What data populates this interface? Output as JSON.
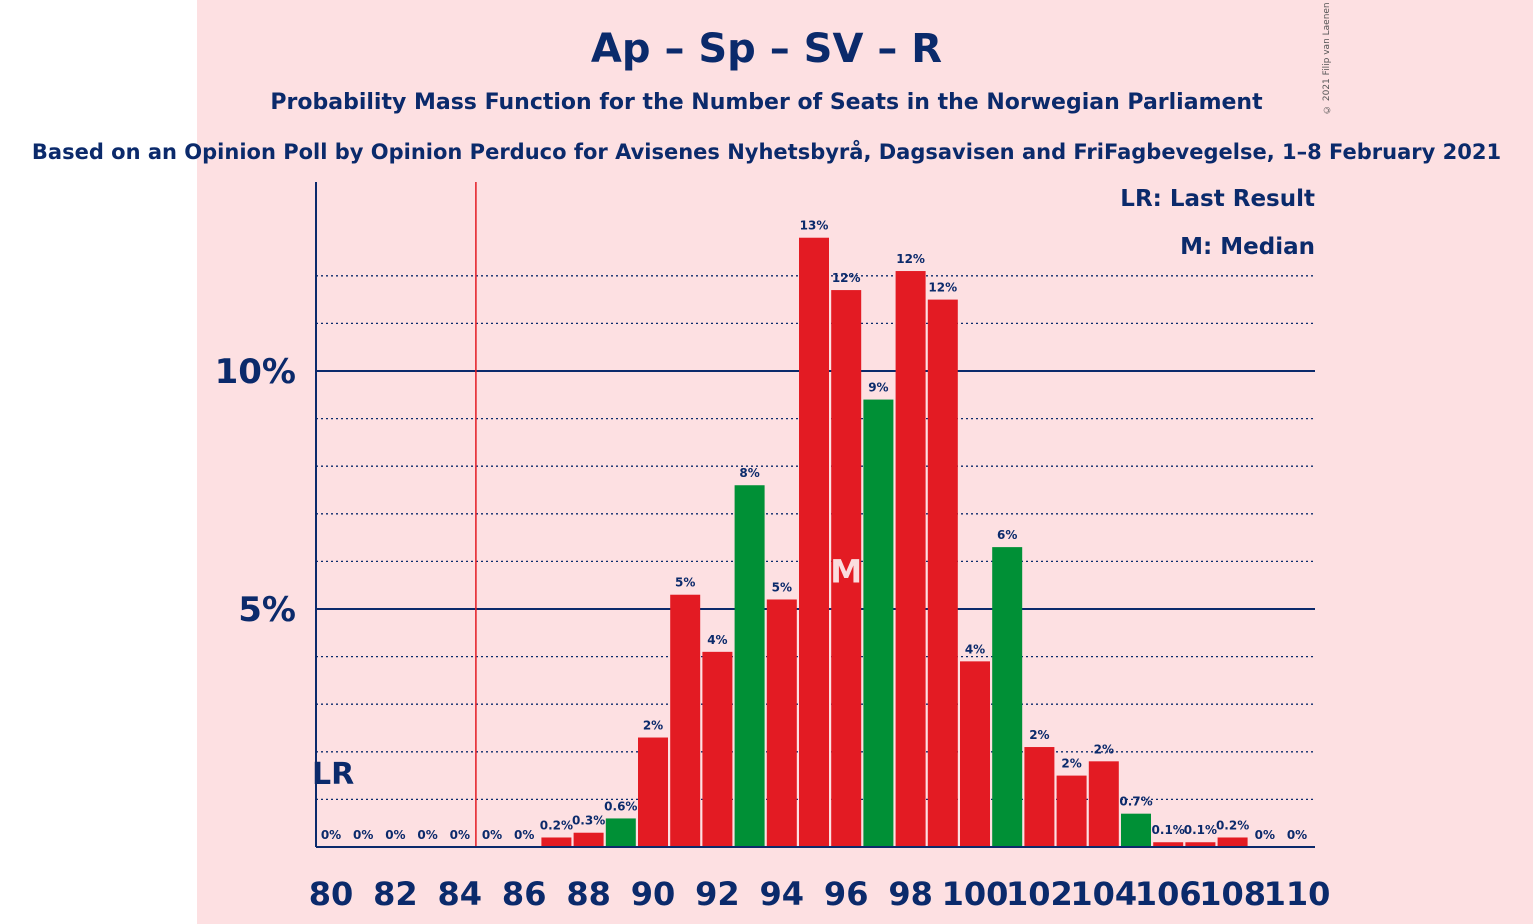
{
  "title": "Ap – Sp – SV – R",
  "subtitle": "Probability Mass Function for the Number of Seats in the Norwegian Parliament",
  "subtitle2": "Based on an Opinion Poll by Opinion Perduco for Avisenes Nyhetsbyrå, Dagsavisen and FriFagbevegelse, 1–8 February 2021",
  "copyright": "© 2021 Filip van Laenen",
  "legend": {
    "lr": "LR: Last Result",
    "m": "M: Median"
  },
  "colors": {
    "background": "#fde0e2",
    "red": "#e31b23",
    "green": "#009036",
    "axis": "#0b2a6b",
    "last_result_line": "#e31b23"
  },
  "chart_data": {
    "type": "bar",
    "xlabel": "",
    "ylabel": "",
    "x": [
      80,
      81,
      82,
      83,
      84,
      85,
      86,
      87,
      88,
      89,
      90,
      91,
      92,
      93,
      94,
      95,
      96,
      97,
      98,
      99,
      100,
      101,
      102,
      103,
      104,
      105,
      106,
      107,
      108,
      109,
      110
    ],
    "values": [
      0,
      0,
      0,
      0,
      0,
      0,
      0,
      0.2,
      0.3,
      0.6,
      2.3,
      5.3,
      4.1,
      7.6,
      5.2,
      12.8,
      11.7,
      9.4,
      12.1,
      11.5,
      3.9,
      6.3,
      2.1,
      1.5,
      1.8,
      0.7,
      0.1,
      0.1,
      0.2,
      0,
      0
    ],
    "labels": [
      "0%",
      "0%",
      "0%",
      "0%",
      "0%",
      "0%",
      "0%",
      "0.2%",
      "0.3%",
      "0.6%",
      "2%",
      "5%",
      "4%",
      "8%",
      "5%",
      "13%",
      "12%",
      "9%",
      "12%",
      "12%",
      "4%",
      "6%",
      "2%",
      "2%",
      "2%",
      "0.7%",
      "0.1%",
      "0.1%",
      "0.2%",
      "0%",
      "0%"
    ],
    "bar_colors": [
      "red",
      "red",
      "red",
      "red",
      "red",
      "red",
      "red",
      "red",
      "red",
      "green",
      "red",
      "red",
      "red",
      "green",
      "red",
      "red",
      "red",
      "green",
      "red",
      "red",
      "red",
      "green",
      "red",
      "red",
      "red",
      "green",
      "red",
      "red",
      "red",
      "red",
      "red"
    ],
    "x_tick_labels": [
      "80",
      "82",
      "84",
      "86",
      "88",
      "90",
      "92",
      "94",
      "96",
      "98",
      "100",
      "102",
      "104",
      "106",
      "108",
      "110"
    ],
    "y_tick_labels": [
      {
        "value": 5,
        "label": "5%"
      },
      {
        "value": 10,
        "label": "10%"
      }
    ],
    "ylim": [
      0,
      14
    ],
    "grid": "dotted every 1%, solid at 5% and 10%",
    "last_result": {
      "x": 85,
      "label": "LR"
    },
    "median": {
      "x": 96,
      "label": "M"
    }
  }
}
